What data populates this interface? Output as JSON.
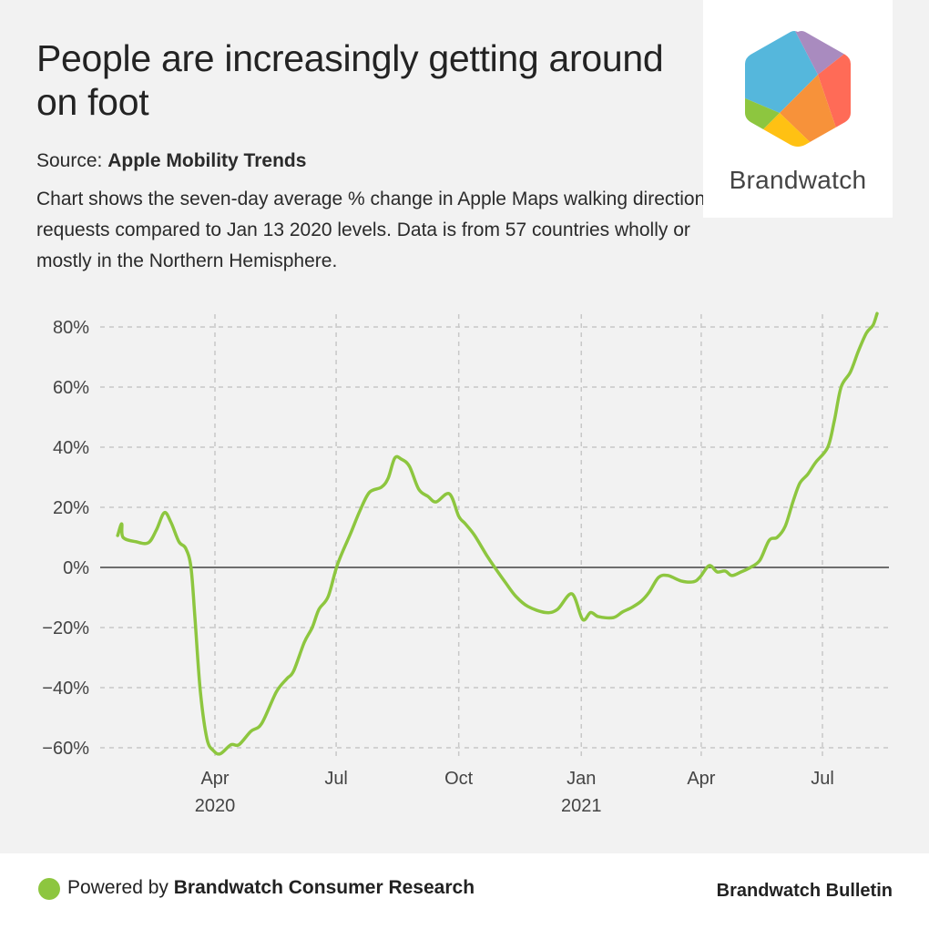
{
  "header": {
    "title": "People are increasingly getting around on foot",
    "source_prefix": "Source:",
    "source_name": "Apple Mobility Trends",
    "description": "Chart shows the seven-day average % change in Apple Maps walking direction requests compared to Jan 13 2020 levels. Data is from 57 countries wholly or mostly in the Northern Hemisphere."
  },
  "logo": {
    "name": "Brandwatch",
    "icon": "brandwatch-hexagon-icon",
    "colors": [
      "#55b7dc",
      "#a98bbf",
      "#ff6b57",
      "#f7923a",
      "#ffc113",
      "#8dc63f"
    ]
  },
  "footer": {
    "powered_prefix": "Powered by",
    "powered_name": "Brandwatch Consumer Research",
    "bulletin": "Brandwatch Bulletin",
    "dot_color": "#8dc63f"
  },
  "chart_data": {
    "type": "line",
    "title": "People are increasingly getting around on foot",
    "xlabel": "",
    "ylabel": "",
    "ylim": [
      -60,
      80
    ],
    "xlim": [
      "2020-01-13",
      "2021-08-25"
    ],
    "grid": true,
    "legend": "none",
    "y_ticks": [
      80,
      60,
      40,
      20,
      0,
      -20,
      -40,
      -60
    ],
    "y_tick_labels": [
      "80%",
      "60%",
      "40%",
      "20%",
      "0%",
      "−20%",
      "−40%",
      "−60%"
    ],
    "x_ticks": [
      {
        "date": "2020-04-01",
        "label": "Apr",
        "sublabel": "2020"
      },
      {
        "date": "2020-07-01",
        "label": "Jul",
        "sublabel": ""
      },
      {
        "date": "2020-10-01",
        "label": "Oct",
        "sublabel": ""
      },
      {
        "date": "2021-01-01",
        "label": "Jan",
        "sublabel": "2021"
      },
      {
        "date": "2021-04-01",
        "label": "Apr",
        "sublabel": ""
      },
      {
        "date": "2021-07-01",
        "label": "Jul",
        "sublabel": ""
      }
    ],
    "series": [
      {
        "name": "Walking direction requests (7-day avg % change)",
        "color": "#8dc63f",
        "x": [
          "2020-01-19",
          "2020-01-22",
          "2020-01-23",
          "2020-02-02",
          "2020-02-11",
          "2020-02-17",
          "2020-02-23",
          "2020-02-28",
          "2020-03-05",
          "2020-03-10",
          "2020-03-14",
          "2020-03-17",
          "2020-03-21",
          "2020-03-26",
          "2020-03-31",
          "2020-04-05",
          "2020-04-13",
          "2020-04-19",
          "2020-04-28",
          "2020-05-06",
          "2020-05-17",
          "2020-05-25",
          "2020-05-30",
          "2020-06-07",
          "2020-06-13",
          "2020-06-18",
          "2020-06-25",
          "2020-07-02",
          "2020-07-12",
          "2020-07-19",
          "2020-07-26",
          "2020-08-04",
          "2020-08-09",
          "2020-08-14",
          "2020-08-19",
          "2020-08-25",
          "2020-09-01",
          "2020-09-08",
          "2020-09-14",
          "2020-09-24",
          "2020-10-01",
          "2020-10-06",
          "2020-10-13",
          "2020-10-22",
          "2020-10-28",
          "2020-11-05",
          "2020-11-13",
          "2020-11-22",
          "2020-12-05",
          "2020-12-14",
          "2020-12-25",
          "2021-01-02",
          "2021-01-08",
          "2021-01-14",
          "2021-01-25",
          "2021-02-01",
          "2021-02-08",
          "2021-02-15",
          "2021-02-21",
          "2021-02-28",
          "2021-03-07",
          "2021-03-17",
          "2021-03-26",
          "2021-03-31",
          "2021-04-07",
          "2021-04-13",
          "2021-04-19",
          "2021-04-24",
          "2021-05-01",
          "2021-05-08",
          "2021-05-15",
          "2021-05-22",
          "2021-05-28",
          "2021-06-03",
          "2021-06-09",
          "2021-06-14",
          "2021-06-20",
          "2021-06-26",
          "2021-07-05",
          "2021-07-10",
          "2021-07-15",
          "2021-07-22",
          "2021-07-28",
          "2021-08-03",
          "2021-08-08",
          "2021-08-11"
        ],
        "values": [
          10.6,
          14.5,
          10,
          8.5,
          8.2,
          12.4,
          18.2,
          15,
          8.5,
          6.4,
          0,
          -17,
          -41,
          -57,
          -61,
          -62,
          -59,
          -59,
          -54.5,
          -52,
          -41.5,
          -37,
          -34.5,
          -25,
          -20,
          -14,
          -9.7,
          1,
          11.5,
          19,
          25,
          26.7,
          29.7,
          36.4,
          36,
          33.6,
          26,
          23.6,
          21.8,
          24.5,
          17,
          14.5,
          10.6,
          4,
          0,
          -5,
          -9.7,
          -13,
          -15,
          -14,
          -8.8,
          -17.3,
          -15,
          -16.4,
          -16.7,
          -14.8,
          -13.3,
          -11.2,
          -8.2,
          -3.3,
          -2.7,
          -4.5,
          -4.8,
          -3.3,
          0.6,
          -1.5,
          -1.2,
          -2.7,
          -1.5,
          0,
          2.4,
          9,
          10,
          13.6,
          22,
          28,
          31,
          35,
          40,
          49,
          60,
          65,
          72,
          78,
          80.6,
          84.5
        ]
      }
    ]
  }
}
